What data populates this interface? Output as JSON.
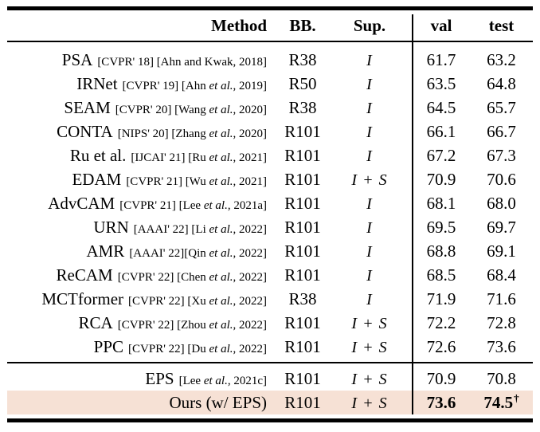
{
  "table": {
    "columns": [
      "Method",
      "BB.",
      "Sup.",
      "val",
      "test"
    ],
    "highlight_color": "#f6e1d5",
    "dagger_symbol": "†",
    "groups": [
      {
        "rows": [
          {
            "method": "PSA",
            "citation": "[CVPR' 18] [Ahn and Kwak, 2018]",
            "bb": "R38",
            "sup": "I",
            "val": "61.7",
            "test": "63.2"
          },
          {
            "method": "IRNet",
            "citation": "[CVPR' 19] [Ahn et al., 2019]",
            "bb": "R50",
            "sup": "I",
            "val": "63.5",
            "test": "64.8"
          },
          {
            "method": "SEAM",
            "citation": "[CVPR' 20] [Wang et al., 2020]",
            "bb": "R38",
            "sup": "I",
            "val": "64.5",
            "test": "65.7"
          },
          {
            "method": "CONTA",
            "citation": "[NIPS' 20] [Zhang et al., 2020]",
            "bb": "R101",
            "sup": "I",
            "val": "66.1",
            "test": "66.7"
          },
          {
            "method": "Ru et al.",
            "citation": "[IJCAI' 21] [Ru et al., 2021]",
            "bb": "R101",
            "sup": "I",
            "val": "67.2",
            "test": "67.3"
          },
          {
            "method": "EDAM",
            "citation": "[CVPR' 21] [Wu et al., 2021]",
            "bb": "R101",
            "sup": "I + S",
            "val": "70.9",
            "test": "70.6"
          },
          {
            "method": "AdvCAM",
            "citation": "[CVPR' 21] [Lee et al., 2021a]",
            "bb": "R101",
            "sup": "I",
            "val": "68.1",
            "test": "68.0"
          },
          {
            "method": "URN",
            "citation": "[AAAI' 22] [Li et al., 2022]",
            "bb": "R101",
            "sup": "I",
            "val": "69.5",
            "test": "69.7"
          },
          {
            "method": "AMR",
            "citation": "[AAAI' 22][Qin et al., 2022]",
            "bb": "R101",
            "sup": "I",
            "val": "68.8",
            "test": "69.1"
          },
          {
            "method": "ReCAM",
            "citation": "[CVPR' 22] [Chen et al., 2022]",
            "bb": "R101",
            "sup": "I",
            "val": "68.5",
            "test": "68.4"
          },
          {
            "method": "MCTformer",
            "citation": "[CVPR' 22] [Xu et al., 2022]",
            "bb": "R38",
            "sup": "I",
            "val": "71.9",
            "test": "71.6"
          },
          {
            "method": "RCA",
            "citation": "[CVPR' 22] [Zhou et al., 2022]",
            "bb": "R101",
            "sup": "I + S",
            "val": "72.2",
            "test": "72.8"
          },
          {
            "method": "PPC",
            "citation": "[CVPR' 22] [Du et al., 2022]",
            "bb": "R101",
            "sup": "I + S",
            "val": "72.6",
            "test": "73.6"
          }
        ]
      },
      {
        "rows": [
          {
            "method": "EPS",
            "citation": "[Lee et al., 2021c]",
            "bb": "R101",
            "sup": "I + S",
            "val": "70.9",
            "test": "70.8"
          },
          {
            "method": "Ours (w/ EPS)",
            "citation": "",
            "bb": "R101",
            "sup": "I + S",
            "val": "73.6",
            "test": "74.5",
            "test_sup": "†",
            "bold_scores": true,
            "highlight": true
          }
        ]
      }
    ]
  }
}
